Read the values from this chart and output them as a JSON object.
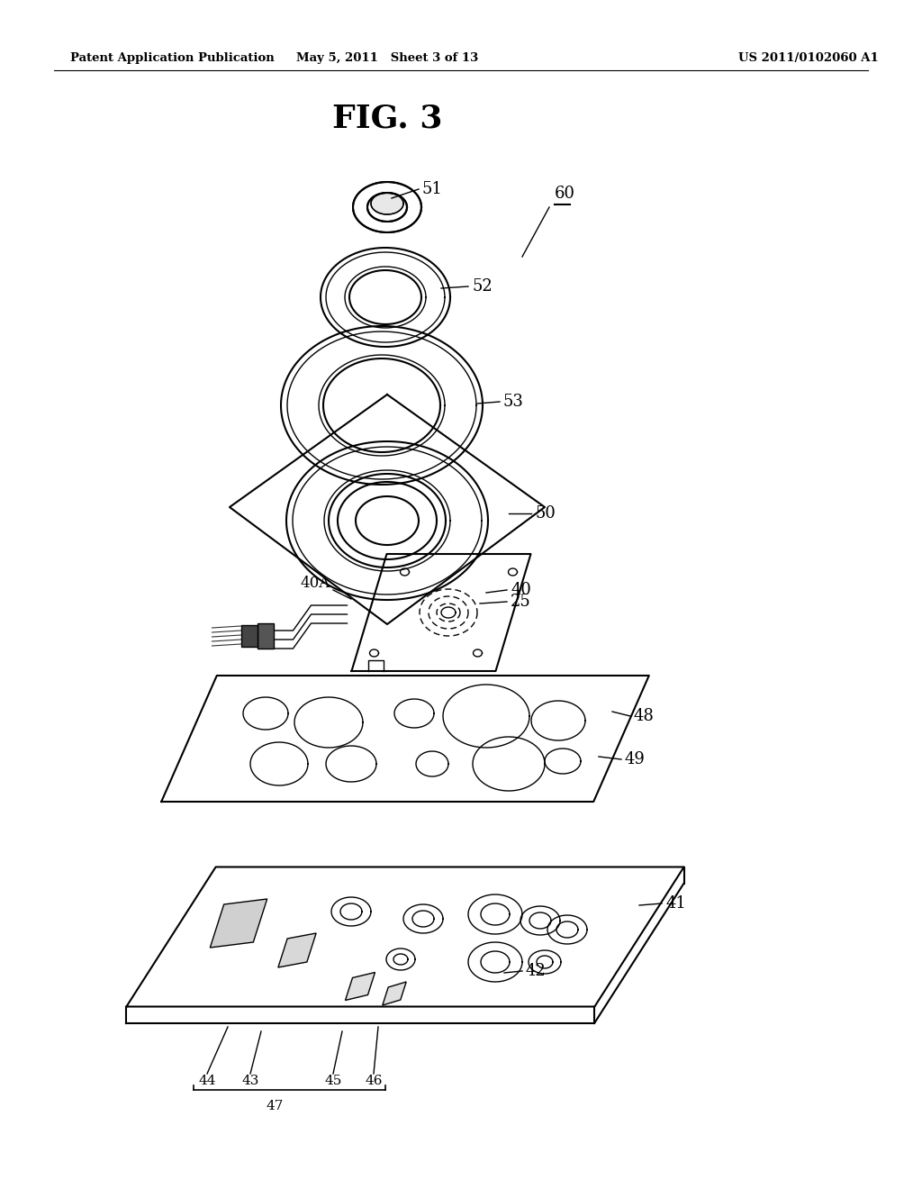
{
  "title": "FIG. 3",
  "header_left": "Patent Application Publication",
  "header_mid": "May 5, 2011   Sheet 3 of 13",
  "header_right": "US 2011/0102060 A1",
  "background_color": "#ffffff",
  "line_color": "#000000"
}
